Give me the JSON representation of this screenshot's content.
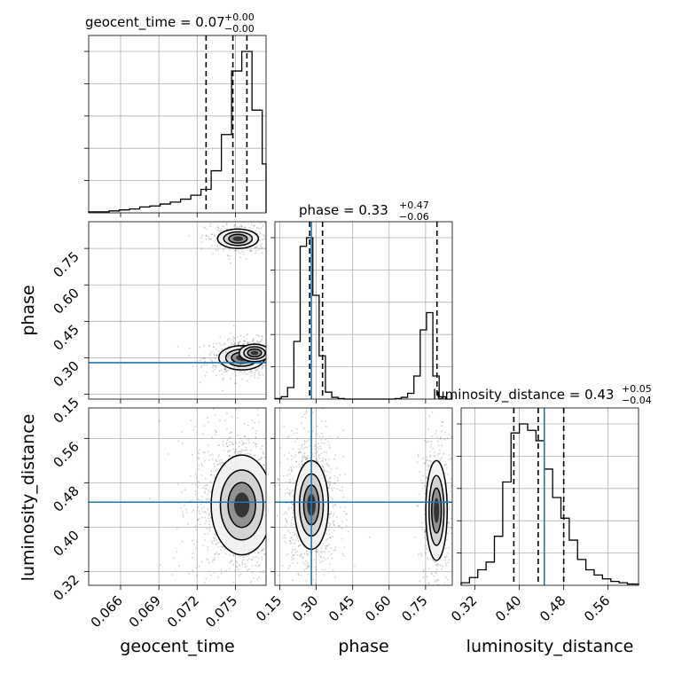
{
  "chart_data": {
    "type": "corner",
    "parameters": [
      "geocent_time",
      "phase",
      "luminosity_distance"
    ],
    "truth_color": "#1f77b4",
    "grid": true,
    "titles": [
      {
        "param": "geocent_time",
        "value": "0.07",
        "plus": "+0.00",
        "minus": "−0.00"
      },
      {
        "param": "phase",
        "value": "0.33",
        "plus": "+0.47",
        "minus": "−0.06"
      },
      {
        "param": "luminosity_distance",
        "value": "0.43",
        "plus": "+0.05",
        "minus": "−0.04"
      }
    ],
    "xlabels": [
      "geocent_time",
      "phase",
      "luminosity_distance"
    ],
    "ylabels": [
      "phase",
      "luminosity_distance"
    ],
    "ticks": {
      "geocent_time": [
        "0.066",
        "0.069",
        "0.072",
        "0.075"
      ],
      "phase": [
        "0.15",
        "0.30",
        "0.45",
        "0.60",
        "0.75"
      ],
      "luminosity_distance": [
        "0.32",
        "0.40",
        "0.48",
        "0.56"
      ]
    },
    "ranges": {
      "geocent_time": [
        0.0635,
        0.0774
      ],
      "phase": [
        0.13,
        0.86
      ],
      "luminosity_distance": [
        0.295,
        0.615
      ]
    },
    "truth": {
      "phase": 0.28,
      "luminosity_distance": 0.445
    },
    "quantiles": {
      "geocent_time": [
        0.0727,
        0.0748,
        0.0759
      ],
      "phase": [
        0.273,
        0.326,
        0.797
      ],
      "luminosity_distance": [
        0.39,
        0.434,
        0.48
      ]
    },
    "histograms": {
      "geocent_time": {
        "edges": [
          0.0635,
          0.0643,
          0.0651,
          0.0659,
          0.0667,
          0.0675,
          0.0683,
          0.0691,
          0.0699,
          0.0707,
          0.0715,
          0.0723,
          0.0731,
          0.0739,
          0.0747,
          0.0755,
          0.0763,
          0.0771,
          0.0774
        ],
        "counts": [
          1,
          1,
          2,
          3,
          4,
          6,
          7,
          9,
          11,
          14,
          18,
          24,
          43,
          80,
          145,
          165,
          105,
          50
        ]
      },
      "phase": {
        "edges": [
          0.13,
          0.156,
          0.182,
          0.208,
          0.234,
          0.26,
          0.286,
          0.312,
          0.338,
          0.364,
          0.39,
          0.416,
          0.442,
          0.468,
          0.494,
          0.52,
          0.546,
          0.572,
          0.598,
          0.624,
          0.65,
          0.676,
          0.702,
          0.728,
          0.754,
          0.78,
          0.806,
          0.832,
          0.86
        ],
        "counts": [
          1,
          4,
          20,
          100,
          265,
          280,
          180,
          75,
          12,
          3,
          1,
          0,
          0,
          0,
          0,
          0,
          0,
          0,
          0,
          1,
          3,
          10,
          40,
          120,
          150,
          40,
          4,
          0
        ]
      },
      "luminosity_distance": {
        "edges": [
          0.295,
          0.31,
          0.325,
          0.34,
          0.355,
          0.37,
          0.385,
          0.4,
          0.415,
          0.43,
          0.445,
          0.46,
          0.475,
          0.49,
          0.505,
          0.52,
          0.535,
          0.55,
          0.565,
          0.58,
          0.595,
          0.615
        ],
        "counts": [
          2,
          6,
          12,
          18,
          38,
          80,
          118,
          125,
          120,
          112,
          90,
          68,
          52,
          35,
          20,
          12,
          8,
          5,
          3,
          2,
          1
        ]
      }
    },
    "density_modes": {
      "phase_vs_geocent_time": [
        {
          "x": 0.0755,
          "y": 0.3,
          "sx": 0.0009,
          "sy": 0.025,
          "weight": 0.35
        },
        {
          "x": 0.0765,
          "y": 0.32,
          "sx": 0.0006,
          "sy": 0.018,
          "weight": 0.2
        },
        {
          "x": 0.0752,
          "y": 0.79,
          "sx": 0.0008,
          "sy": 0.02,
          "weight": 0.2
        }
      ],
      "luminosity_distance_vs_geocent_time": [
        {
          "x": 0.0755,
          "y": 0.44,
          "sx": 0.0012,
          "sy": 0.045,
          "weight": 1.0
        }
      ],
      "luminosity_distance_vs_phase": [
        {
          "x": 0.28,
          "y": 0.44,
          "sx": 0.035,
          "sy": 0.04,
          "weight": 0.72
        },
        {
          "x": 0.795,
          "y": 0.43,
          "sx": 0.022,
          "sy": 0.045,
          "weight": 0.28
        }
      ]
    }
  }
}
